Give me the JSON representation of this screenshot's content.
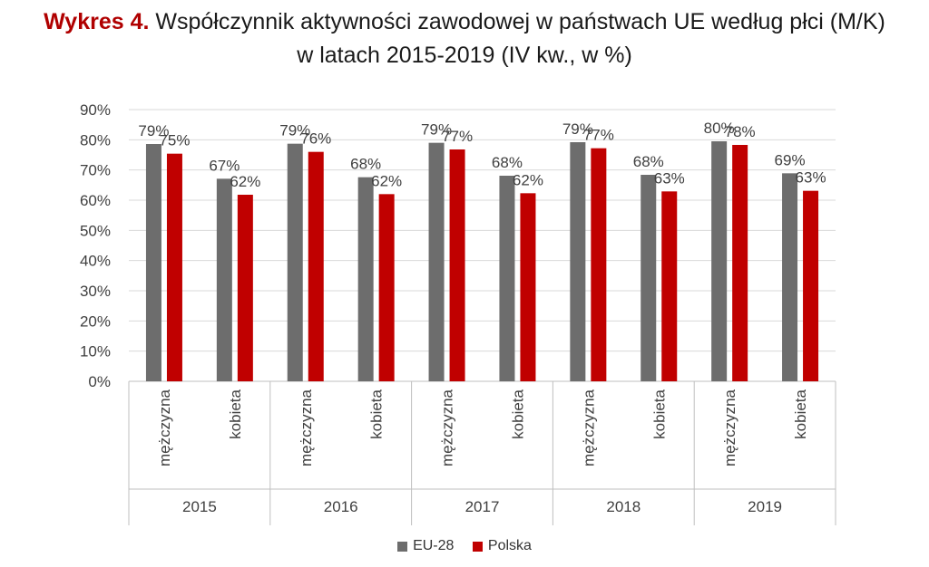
{
  "title": {
    "prefix": "Wykres 4.",
    "line1": "Współczynnik aktywności zawodowej w państwach UE według płci (M/K)",
    "line2": "w latach 2015-2019 (IV kw., w %)"
  },
  "colors": {
    "eu28": "#6d6d6d",
    "polska": "#c00000",
    "prefix": "#b00000"
  },
  "chart_data": {
    "type": "bar",
    "title": "Współczynnik aktywności zawodowej w państwach UE według płci (M/K) w latach 2015-2019 (IV kw., w %)",
    "groups": [
      "2015",
      "2016",
      "2017",
      "2018",
      "2019"
    ],
    "subcategories": [
      "mężczyzna",
      "kobieta"
    ],
    "categories": [
      "2015 mężczyzna",
      "2015 kobieta",
      "2016 mężczyzna",
      "2016 kobieta",
      "2017 mężczyzna",
      "2017 kobieta",
      "2018 mężczyzna",
      "2018 kobieta",
      "2019 mężczyzna",
      "2019 kobieta"
    ],
    "series": [
      {
        "name": "EU-28",
        "values": [
          78.6,
          67.1,
          78.7,
          67.6,
          79.0,
          68.1,
          79.2,
          68.4,
          79.5,
          68.9
        ],
        "labels": [
          "79%",
          "67%",
          "79%",
          "68%",
          "79%",
          "68%",
          "79%",
          "68%",
          "80%",
          "69%"
        ]
      },
      {
        "name": "Polska",
        "values": [
          75.4,
          61.8,
          76.0,
          62.0,
          76.8,
          62.3,
          77.2,
          62.9,
          78.3,
          63.1
        ],
        "labels": [
          "75%",
          "62%",
          "76%",
          "62%",
          "77%",
          "62%",
          "77%",
          "63%",
          "78%",
          "63%"
        ]
      }
    ],
    "ylim": [
      0,
      90
    ],
    "yticks": [
      "0%",
      "10%",
      "20%",
      "30%",
      "40%",
      "50%",
      "60%",
      "70%",
      "80%",
      "90%"
    ],
    "grid": true,
    "legend_position": "bottom"
  }
}
